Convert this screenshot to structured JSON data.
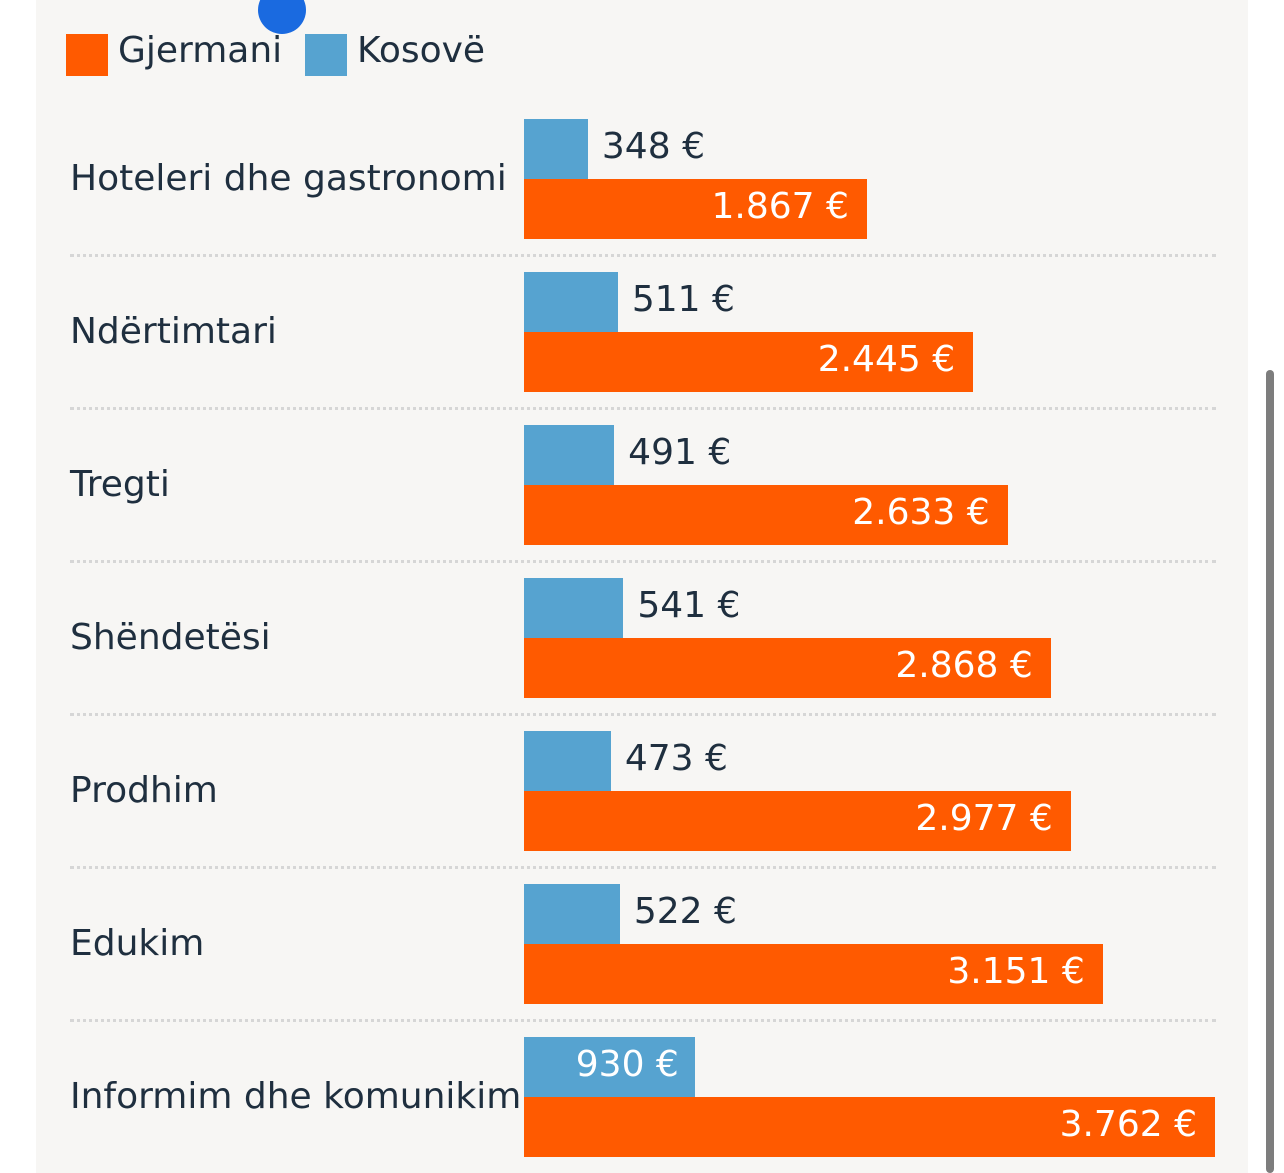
{
  "colors": {
    "germany": "#ff5a00",
    "kosovo": "#56a3d0",
    "text": "#1f2f3f",
    "inside_label": "#ffffff"
  },
  "legend": [
    {
      "name": "Gjermani",
      "color": "#ff5a00"
    },
    {
      "name": "Kosovë",
      "color": "#56a3d0"
    }
  ],
  "chart_data": {
    "type": "bar",
    "orientation": "horizontal",
    "categories": [
      "Hoteleri dhe gastronomi",
      "Ndërtimtari",
      "Tregti",
      "Shëndetësi",
      "Prodhim",
      "Edukim",
      "Informim dhe komunikim"
    ],
    "series": [
      {
        "name": "Kosovë",
        "values": [
          348,
          511,
          491,
          541,
          473,
          522,
          930
        ],
        "labels": [
          "348 €",
          "511 €",
          "491 €",
          "541 €",
          "473 €",
          "522 €",
          "930 €"
        ]
      },
      {
        "name": "Gjermani",
        "values": [
          1867,
          2445,
          2633,
          2868,
          2977,
          3151,
          3762
        ],
        "labels": [
          "1.867 €",
          "2.445 €",
          "2.633 €",
          "2.868 €",
          "2.977 €",
          "3.151 €",
          "3.762 €"
        ]
      }
    ],
    "xlim": [
      0,
      3762
    ],
    "grid": false,
    "legend_position": "top-left"
  }
}
